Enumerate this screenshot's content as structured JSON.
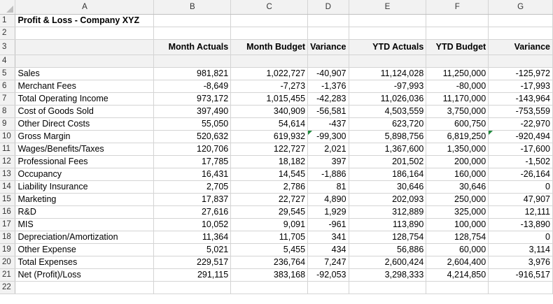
{
  "columns": [
    "A",
    "B",
    "C",
    "D",
    "E",
    "F",
    "G"
  ],
  "title": "Profit & Loss - Company XYZ",
  "headers": [
    "Month Actuals",
    "Month Budget",
    "Variance",
    "YTD Actuals",
    "YTD Budget",
    "Variance"
  ],
  "rows": [
    {
      "label": "Sales",
      "values": [
        "981,821",
        "1,022,727",
        "-40,907",
        "11,124,028",
        "11,250,000",
        "-125,972"
      ]
    },
    {
      "label": "Merchant Fees",
      "values": [
        "-8,649",
        "-7,273",
        "-1,376",
        "-97,993",
        "-80,000",
        "-17,993"
      ]
    },
    {
      "label": "Total Operating Income",
      "values": [
        "973,172",
        "1,015,455",
        "-42,283",
        "11,026,036",
        "11,170,000",
        "-143,964"
      ]
    },
    {
      "label": "Cost of Goods Sold",
      "values": [
        "397,490",
        "340,909",
        "-56,581",
        "4,503,559",
        "3,750,000",
        "-753,559"
      ]
    },
    {
      "label": "Other Direct Costs",
      "values": [
        "55,050",
        "54,614",
        "-437",
        "623,720",
        "600,750",
        "-22,970"
      ]
    },
    {
      "label": "Gross Margin",
      "values": [
        "520,632",
        "619,932",
        "-99,300",
        "5,898,756",
        "6,819,250",
        "-920,494"
      ]
    },
    {
      "label": "Wages/Benefits/Taxes",
      "values": [
        "120,706",
        "122,727",
        "2,021",
        "1,367,600",
        "1,350,000",
        "-17,600"
      ]
    },
    {
      "label": "Professional Fees",
      "values": [
        "17,785",
        "18,182",
        "397",
        "201,502",
        "200,000",
        "-1,502"
      ]
    },
    {
      "label": "Occupancy",
      "values": [
        "16,431",
        "14,545",
        "-1,886",
        "186,164",
        "160,000",
        "-26,164"
      ]
    },
    {
      "label": "Liability Insurance",
      "values": [
        "2,705",
        "2,786",
        "81",
        "30,646",
        "30,646",
        "0"
      ]
    },
    {
      "label": "Marketing",
      "values": [
        "17,837",
        "22,727",
        "4,890",
        "202,093",
        "250,000",
        "47,907"
      ]
    },
    {
      "label": "R&D",
      "values": [
        "27,616",
        "29,545",
        "1,929",
        "312,889",
        "325,000",
        "12,111"
      ]
    },
    {
      "label": "MIS",
      "values": [
        "10,052",
        "9,091",
        "-961",
        "113,890",
        "100,000",
        "-13,890"
      ]
    },
    {
      "label": "Depreciation/Amortization",
      "values": [
        "11,364",
        "11,705",
        "341",
        "128,754",
        "128,754",
        "0"
      ]
    },
    {
      "label": "Other Expense",
      "values": [
        "5,021",
        "5,455",
        "434",
        "56,886",
        "60,000",
        "3,114"
      ]
    },
    {
      "label": "Total Expenses",
      "values": [
        "229,517",
        "236,764",
        "7,247",
        "2,600,424",
        "2,604,400",
        "3,976"
      ]
    },
    {
      "label": "Net (Profit)/Loss",
      "values": [
        "291,115",
        "383,168",
        "-92,053",
        "3,298,333",
        "4,214,850",
        "-916,517"
      ]
    }
  ],
  "row_numbers": [
    "1",
    "2",
    "3",
    "4",
    "5",
    "6",
    "7",
    "8",
    "9",
    "10",
    "11",
    "12",
    "13",
    "14",
    "15",
    "16",
    "17",
    "18",
    "19",
    "20",
    "21",
    "22"
  ]
}
